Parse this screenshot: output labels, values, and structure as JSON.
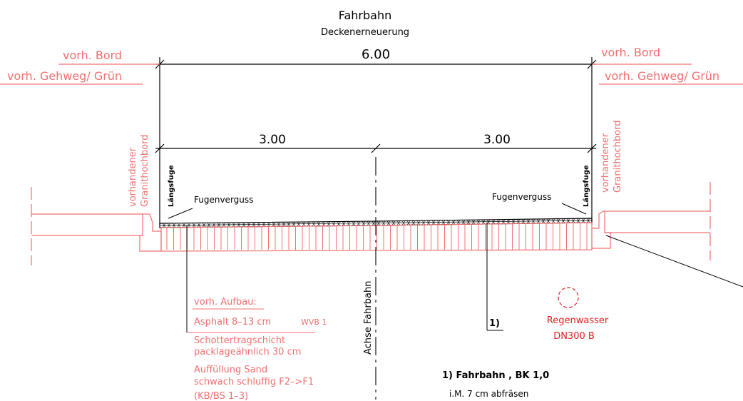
{
  "title": "Fahrbahn",
  "subtitle": "Deckenerneuerung",
  "dimensions": {
    "total": "6.00",
    "left_half": "3.00",
    "right_half": "3.00"
  },
  "labels": {
    "bord_left": "vorh. Bord",
    "bord_right": "vorh. Bord",
    "gehweg_left": "vorh. Gehweg/ Grün",
    "gehweg_right": "vorh. Gehweg/ Grün",
    "granit_left_1": "vorhandener",
    "granit_left_2": "Granithochbord",
    "granit_right_1": "vorhandener",
    "granit_right_2": "Granithochbord",
    "laengsfuge_left": "Längsfuge",
    "laengsfuge_right": "Längsfuge",
    "fugenverguss_left": "Fugenverguss",
    "fugenverguss_right": "Fugenverguss",
    "achse": "Achse Fahrbahn"
  },
  "aufbau": {
    "heading": "vorh. Aufbau:",
    "line1": "Asphalt 8–13 cm",
    "line1_suffix": "WVB 1",
    "line2a": "Schottertragschicht",
    "line2b": "packlageähnlich 30 cm",
    "line3a": "Auffüllung Sand",
    "line3b": "schwach schluffig F2–>F1",
    "line3c": "(KB/BS 1–3)"
  },
  "regenwasser": {
    "name": "Regenwasser",
    "size": "DN300 B"
  },
  "callout": {
    "marker": "1)"
  },
  "legend": {
    "line1": "1) Fahrbahn   , BK 1,0",
    "line2": "i.M. 7 cm abfräsen"
  },
  "colors": {
    "line": "#000000",
    "existing": "#f07070",
    "pipe": "#e02020"
  }
}
